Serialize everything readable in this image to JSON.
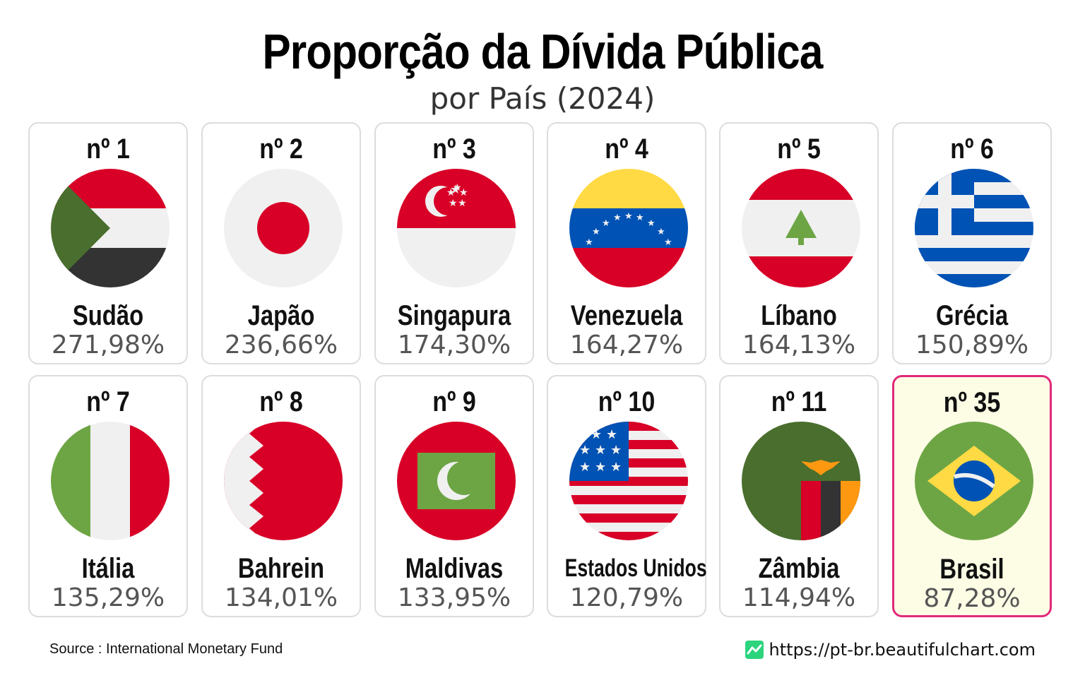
{
  "title": "Proporção da Dívida Pública",
  "subtitle": "por País (2024)",
  "footer": {
    "source": "Source : International Monetary Fund",
    "website": "https://pt-br.beautifulchart.com"
  },
  "chart_data": {
    "type": "table",
    "columns": [
      "rank",
      "country",
      "value"
    ],
    "rows": [
      {
        "rank": "nº 1",
        "country": "Sudão",
        "value": "271,98%",
        "flag": "sudan-flag"
      },
      {
        "rank": "nº 2",
        "country": "Japão",
        "value": "236,66%",
        "flag": "japan-flag"
      },
      {
        "rank": "nº 3",
        "country": "Singapura",
        "value": "174,30%",
        "flag": "singapore-flag"
      },
      {
        "rank": "nº 4",
        "country": "Venezuela",
        "value": "164,27%",
        "flag": "venezuela-flag"
      },
      {
        "rank": "nº 5",
        "country": "Líbano",
        "value": "164,13%",
        "flag": "lebanon-flag"
      },
      {
        "rank": "nº 6",
        "country": "Grécia",
        "value": "150,89%",
        "flag": "greece-flag"
      },
      {
        "rank": "nº 7",
        "country": "Itália",
        "value": "135,29%",
        "flag": "italy-flag"
      },
      {
        "rank": "nº 8",
        "country": "Bahrein",
        "value": "134,01%",
        "flag": "bahrain-flag"
      },
      {
        "rank": "nº 9",
        "country": "Maldivas",
        "value": "133,95%",
        "flag": "maldives-flag"
      },
      {
        "rank": "nº 10",
        "country": "Estados Unidos",
        "value": "120,79%",
        "flag": "usa-flag"
      },
      {
        "rank": "nº 11",
        "country": "Zâmbia",
        "value": "114,94%",
        "flag": "zambia-flag"
      },
      {
        "rank": "nº 35",
        "country": "Brasil",
        "value": "87,28%",
        "flag": "brazil-flag",
        "highlight": true
      }
    ]
  },
  "colors": {
    "highlight_border": "#e0297a",
    "highlight_background": "#fdfde6",
    "card_border": "#dcdcdc",
    "value_text": "#555555"
  }
}
